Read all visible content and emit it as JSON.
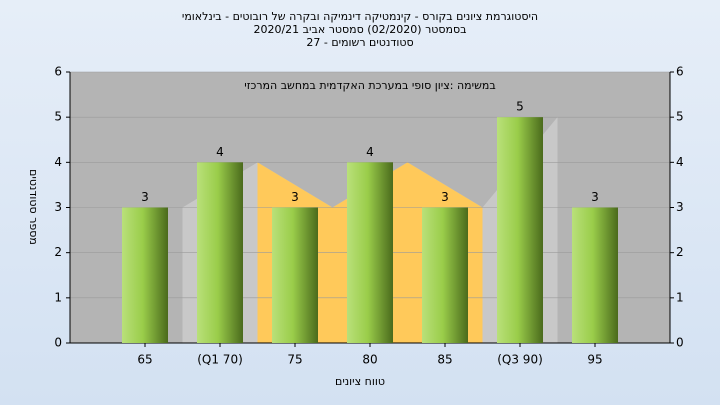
{
  "chart_data": {
    "type": "bar",
    "title": [
      "היסטוגרמת ציונים בקורס - קינמטיקה דינמיקה ובקרה של רובוטים - בינלאומי",
      "בסמסטר  (02/2020)  סמסטר אביב 2020/21",
      "סטודנטים רשומים - 27"
    ],
    "subtitle": "במשימה :ציון סופי במערכת האקדמית במחשב המרכזי",
    "x_label": "טווח ציונים",
    "y_label": "מספר סטודנטים",
    "categories": [
      "65",
      "(Q1 70)",
      "75",
      "80",
      "85",
      "(Q3 90)",
      "95"
    ],
    "values": [
      3,
      4,
      3,
      4,
      3,
      5,
      3
    ],
    "color": "#9acd4a",
    "ylim": [
      0,
      6
    ],
    "yticks": [
      0,
      1,
      2,
      3,
      4,
      5,
      6
    ],
    "y2lim": [
      0,
      6
    ],
    "y2ticks": [
      0,
      1,
      2,
      3,
      4,
      5,
      6
    ],
    "grid": true
  }
}
